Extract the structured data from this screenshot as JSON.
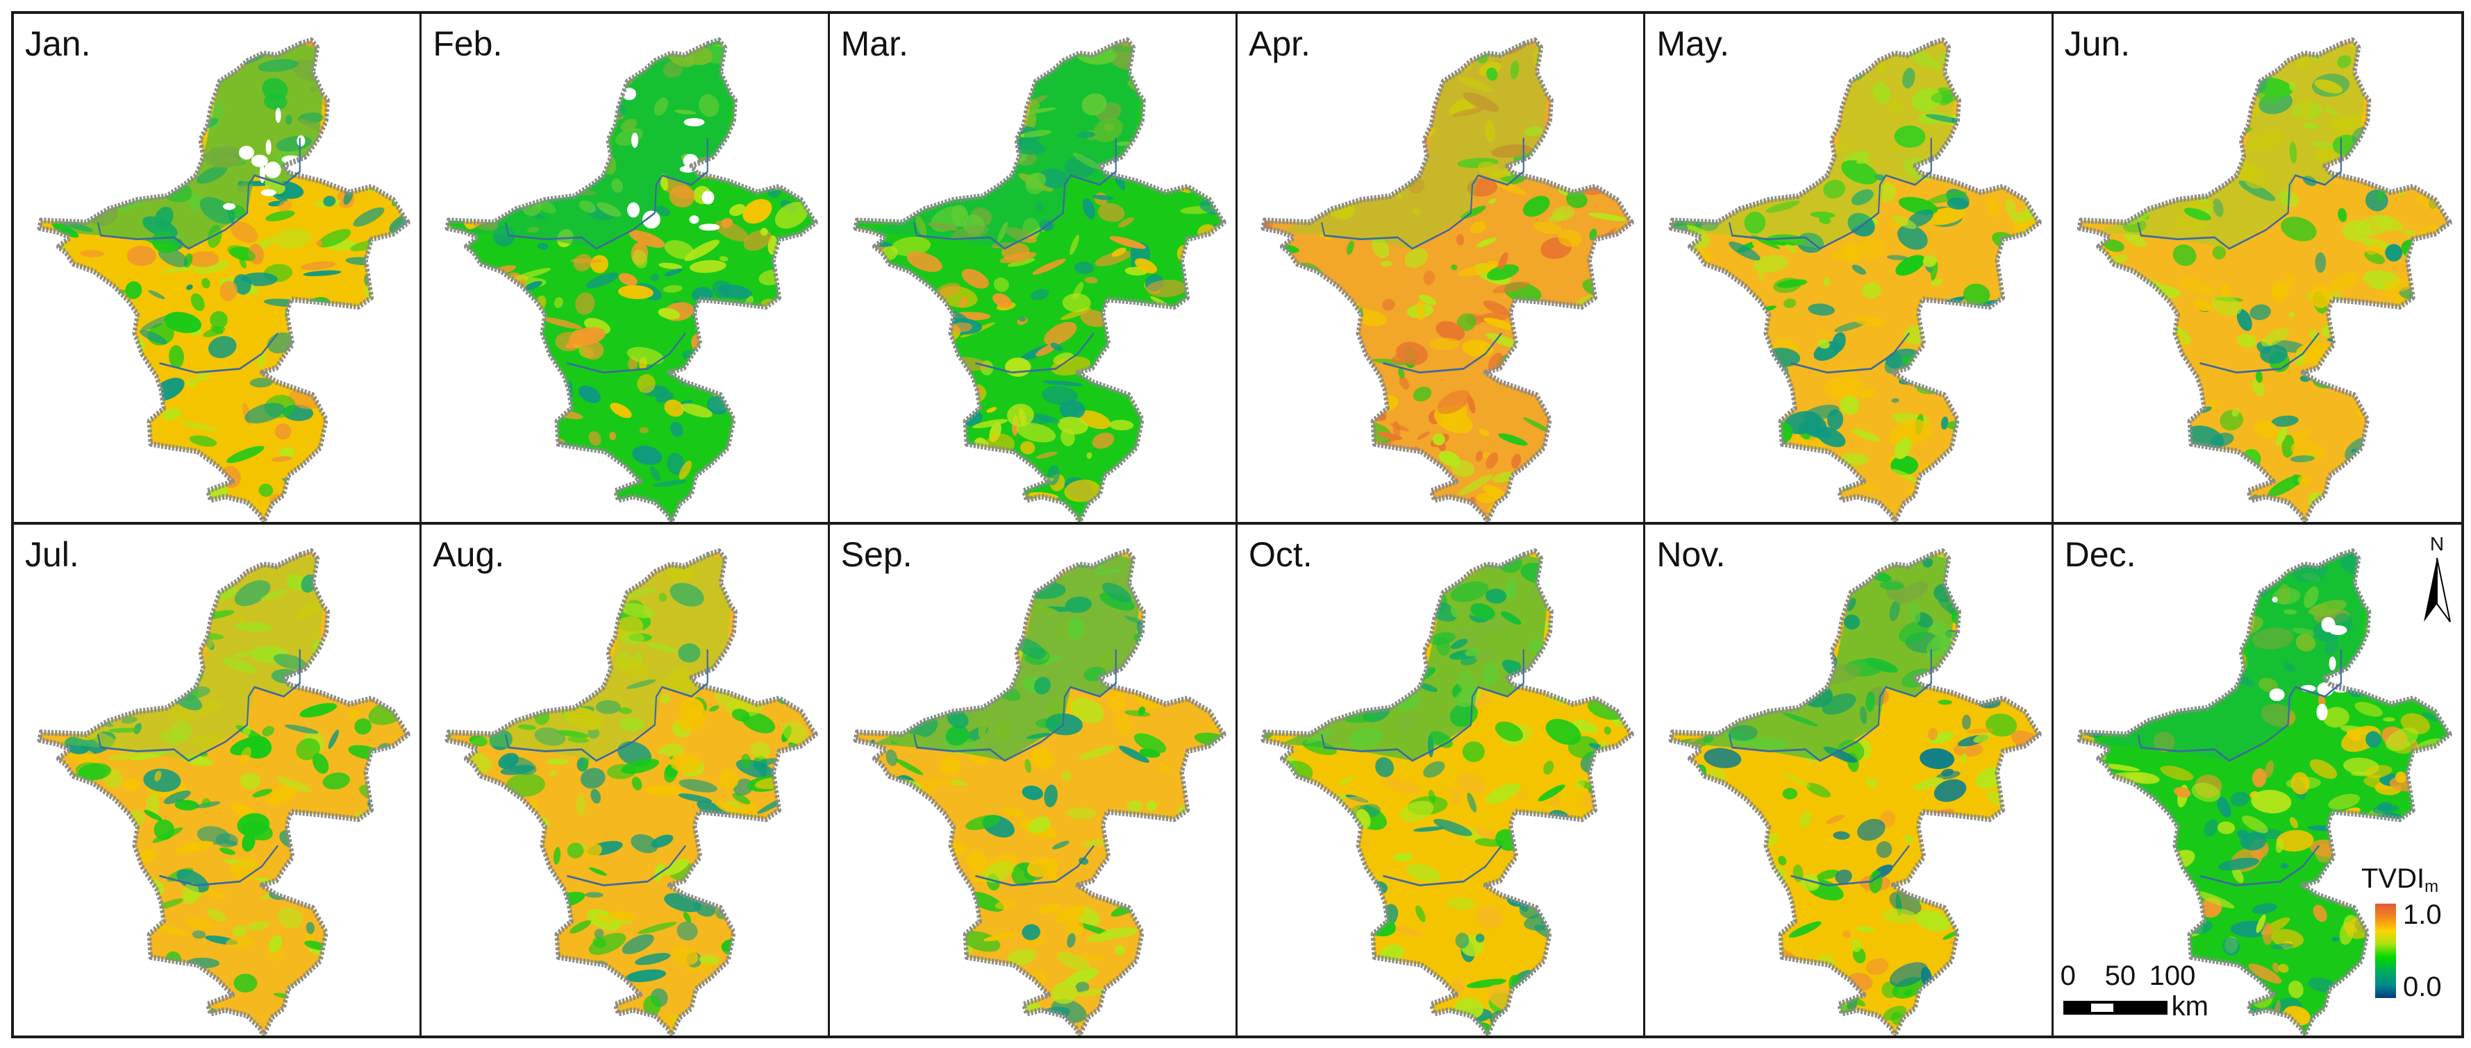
{
  "figure": {
    "layout": {
      "rows": 2,
      "cols": 6
    },
    "panels": [
      {
        "label": "Jan.",
        "dominant": "mixed",
        "palette": [
          "#f5c400",
          "#b6e619",
          "#18c918",
          "#f09a2a",
          "#0f9a80"
        ],
        "has_nodata": true
      },
      {
        "label": "Feb.",
        "dominant": "mixed",
        "palette": [
          "#18c918",
          "#f5c400",
          "#b6e619",
          "#f09a2a",
          "#0f9a80"
        ],
        "has_nodata": true
      },
      {
        "label": "Mar.",
        "dominant": "mixed",
        "palette": [
          "#18c918",
          "#f5c400",
          "#f09a2a",
          "#b6e619",
          "#0f9a80"
        ],
        "has_nodata": false
      },
      {
        "label": "Apr.",
        "dominant": "dry",
        "palette": [
          "#f2a62a",
          "#f5c400",
          "#e8782e",
          "#b6e619",
          "#18c918"
        ],
        "has_nodata": false
      },
      {
        "label": "May.",
        "dominant": "dry",
        "palette": [
          "#f5b81e",
          "#f5c400",
          "#b6e619",
          "#18c918",
          "#0f9a80"
        ],
        "has_nodata": false
      },
      {
        "label": "Jun.",
        "dominant": "dry",
        "palette": [
          "#f5b81e",
          "#f5c400",
          "#b6e619",
          "#0f9a80",
          "#18c918"
        ],
        "has_nodata": false
      },
      {
        "label": "Jul.",
        "dominant": "dry",
        "palette": [
          "#f5b81e",
          "#f5c400",
          "#18c918",
          "#b6e619",
          "#0f9a80"
        ],
        "has_nodata": false
      },
      {
        "label": "Aug.",
        "dominant": "dry",
        "palette": [
          "#f5b81e",
          "#f5c400",
          "#18c918",
          "#b6e619",
          "#0f9a80"
        ],
        "has_nodata": false
      },
      {
        "label": "Sep.",
        "dominant": "mixed",
        "palette": [
          "#f5b81e",
          "#f5c400",
          "#18c918",
          "#b6e619",
          "#0f9a80"
        ],
        "has_nodata": false
      },
      {
        "label": "Oct.",
        "dominant": "mixed",
        "palette": [
          "#f5c400",
          "#18c918",
          "#b6e619",
          "#f5b81e",
          "#0f9a80"
        ],
        "has_nodata": false
      },
      {
        "label": "Nov.",
        "dominant": "mixed",
        "palette": [
          "#f5c400",
          "#b6e619",
          "#18c918",
          "#0f7f8a",
          "#f09a2a"
        ],
        "has_nodata": false
      },
      {
        "label": "Dec.",
        "dominant": "wet",
        "palette": [
          "#18c918",
          "#f5c400",
          "#b6e619",
          "#0f9a80",
          "#f09a2a"
        ],
        "has_nodata": true
      }
    ],
    "north_arrow": {
      "label": "N"
    },
    "legend": {
      "title": "TVDI",
      "title_sub": "m",
      "max_label": "1.0",
      "min_label": "0.0",
      "colors": [
        "#e05a3a",
        "#f2861e",
        "#ffd400",
        "#a7e312",
        "#00d800",
        "#00b05a",
        "#008a8a",
        "#003d80"
      ]
    },
    "scale_bar": {
      "ticks": [
        "0",
        "50",
        "100"
      ],
      "unit": "km"
    },
    "colors": {
      "boundary": "#8c8c8c",
      "internal_boundary": "#3a6aa0",
      "frame": "#1a1a1a",
      "nodata": "#ffffff"
    }
  }
}
